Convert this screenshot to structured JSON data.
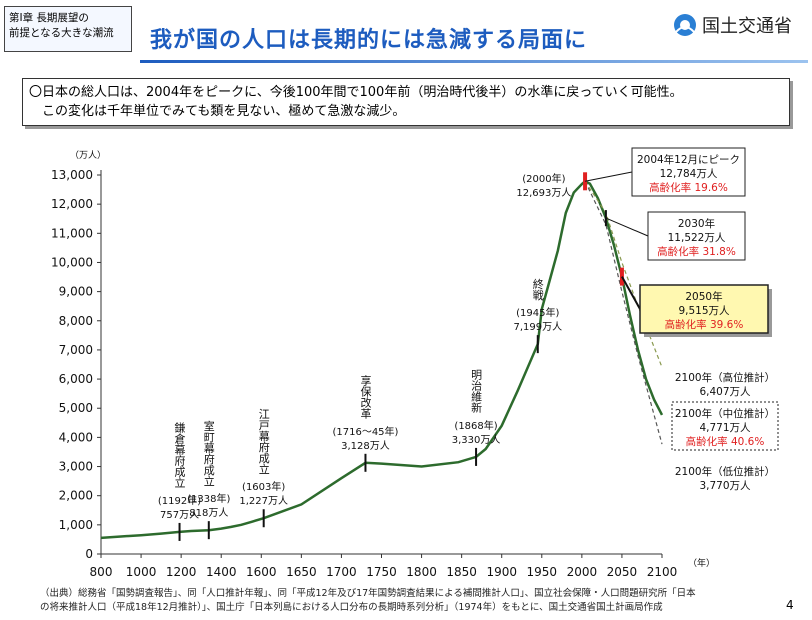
{
  "header": {
    "chapter": [
      "第Ⅰ章 長期展望の",
      "前提となる大きな潮流"
    ],
    "title": "我が国の人口は長期的には急減する局面に",
    "ministry": "国土交通省"
  },
  "summary": [
    "〇日本の総人口は、2004年をピークに、今後100年間で100年前（明治時代後半）の水準に戻っていく可能性。",
    "　この変化は千年単位でみても類を見ない、極めて急激な減少。"
  ],
  "chart_data": {
    "type": "line",
    "y_unit": "（万人）",
    "x_unit": "（年）",
    "xlim": [
      800,
      2100
    ],
    "xticks": [
      800,
      1000,
      1200,
      1400,
      1600,
      1650,
      1700,
      1750,
      1800,
      1850,
      1900,
      1950,
      2000,
      2050,
      2100
    ],
    "ylim": [
      0,
      13000
    ],
    "yticks": [
      0,
      {
        "value": 1000,
        "label": "1,000"
      },
      {
        "value": 2000,
        "label": "2,000"
      },
      {
        "value": 3000,
        "label": "3,000"
      },
      {
        "value": 4000,
        "label": "4,000"
      },
      {
        "value": 5000,
        "label": "5,000"
      },
      {
        "value": 6000,
        "label": "6,000"
      },
      {
        "value": 7000,
        "label": "7,000"
      },
      {
        "value": 8000,
        "label": "8,000"
      },
      {
        "value": 9000,
        "label": "9,000"
      },
      {
        "value": 10000,
        "label": "10,000"
      },
      {
        "value": 11000,
        "label": "11,000"
      },
      {
        "value": 12000,
        "label": "12,000"
      },
      {
        "value": 13000,
        "label": "13,000"
      }
    ],
    "series": [
      {
        "color": "#2d6b2d",
        "style": "solid",
        "x": [
          800,
          900,
          1000,
          1100,
          1192,
          1250,
          1338,
          1400,
          1450,
          1500,
          1550,
          1603,
          1650,
          1700,
          1730,
          1750,
          1800,
          1846,
          1868,
          1880,
          1900,
          1920,
          1945,
          1950,
          1960,
          1970,
          1980,
          1990,
          2000,
          2004,
          2010,
          2020,
          2030,
          2040,
          2050,
          2060,
          2070,
          2080,
          2090,
          2100
        ],
        "values": [
          551,
          600,
          644,
          700,
          757,
          790,
          818,
          870,
          930,
          1000,
          1100,
          1227,
          1700,
          2600,
          3128,
          3100,
          3000,
          3150,
          3330,
          3600,
          4400,
          5600,
          7199,
          8400,
          9400,
          10400,
          11700,
          12400,
          12693,
          12784,
          12700,
          12200,
          11522,
          10600,
          9515,
          8200,
          7000,
          6000,
          5300,
          4771
        ]
      },
      {
        "color": "#8a9a50",
        "style": "dashed",
        "x": [
          2004,
          2030,
          2050,
          2070,
          2100
        ],
        "values": [
          12784,
          11700,
          10000,
          8500,
          6407
        ]
      },
      {
        "color": "#555555",
        "style": "dashed",
        "x": [
          2004,
          2030,
          2050,
          2070,
          2100
        ],
        "values": [
          12784,
          11300,
          9000,
          6800,
          3770
        ]
      }
    ],
    "events": [
      {
        "x": 1192,
        "y": 757,
        "name": "鎌倉幕府成立",
        "year_label": "(1192年)",
        "value_label": "757万人"
      },
      {
        "x": 1338,
        "y": 818,
        "name": "室町幕府成立",
        "year_label": "(1338年)",
        "value_label": "818万人"
      },
      {
        "x": 1603,
        "y": 1227,
        "name": "江戸幕府成立",
        "year_label": "(1603年)",
        "value_label": "1,227万人"
      },
      {
        "x": 1730,
        "y": 3128,
        "name": "享保改革",
        "year_label": "(1716～45年)",
        "value_label": "3,128万人"
      },
      {
        "x": 1868,
        "y": 3330,
        "name": "明治維新",
        "year_label": "(1868年)",
        "value_label": "3,330万人"
      },
      {
        "x": 1945,
        "y": 7199,
        "name": "終戦",
        "year_label": "(1945年)",
        "value_label": "7,199万人"
      }
    ],
    "peak_note": {
      "x": 2000,
      "y": 12693,
      "year_label": "(2000年)",
      "value_label": "12,693万人"
    },
    "callouts": [
      {
        "x": 2004,
        "y": 12784,
        "marker": "red",
        "box": "solid",
        "lines": [
          "2004年12月にピーク",
          "12,784万人"
        ],
        "aging": "高齢化率 19.6%"
      },
      {
        "x": 2030,
        "y": 11522,
        "marker": "tick",
        "box": "solid",
        "lines": [
          "2030年",
          "11,522万人"
        ],
        "aging": "高齢化率 31.8%"
      },
      {
        "x": 2050,
        "y": 9515,
        "marker": "red",
        "box": "yellow",
        "lines": [
          "2050年",
          "9,515万人"
        ],
        "aging": "高齢化率 39.6%"
      },
      {
        "x": 2100,
        "y": 6407,
        "marker": "none",
        "box": "none",
        "lines": [
          "2100年（高位推計）",
          "6,407万人"
        ]
      },
      {
        "x": 2100,
        "y": 4771,
        "marker": "none",
        "box": "dashed",
        "lines": [
          "2100年（中位推計）",
          "4,771万人"
        ],
        "aging": "高齢化率 40.6%"
      },
      {
        "x": 2100,
        "y": 3770,
        "marker": "none",
        "box": "none",
        "lines": [
          "2100年（低位推計）",
          "3,770万人"
        ]
      }
    ]
  },
  "footer": {
    "source": [
      "（出典）総務省「国勢調査報告」、同「人口推計年報」、同「平成12年及び17年国勢調査結果による補間推計人口」、国立社会保障・人口問題研究所「日本",
      "の将来推計人口（平成18年12月推計）」、国土庁「日本列島における人口分布の長期時系列分析」（1974年）をもとに、国土交通省国土計画局作成"
    ],
    "page": "4"
  }
}
